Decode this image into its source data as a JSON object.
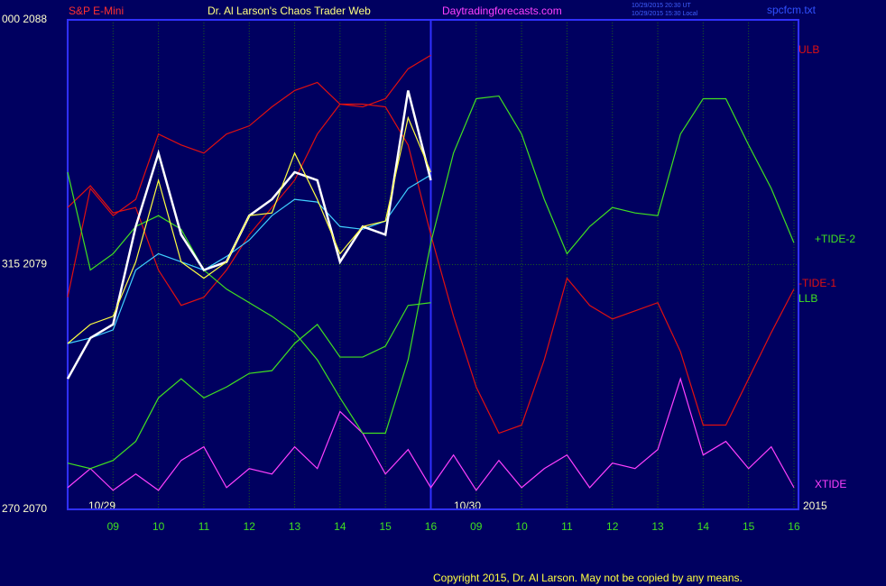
{
  "chart_data": {
    "type": "line",
    "instrument": "S&P E-Mini",
    "title": "Dr. Al Larson's Chaos Trader Web",
    "site": "Daytradingforecasts.com",
    "timestamps": [
      "10/29/2015 20:30 UT",
      "10/29/2015 15:30 Local"
    ],
    "file": "spcfcm.txt",
    "copyright": "Copyright 2015, Dr. Al Larson. May not be copied by any means.",
    "annotations": [
      "10/29",
      "10/30",
      "2015"
    ],
    "xlim": [
      0,
      16.1
    ],
    "ylim": [
      2070,
      2088
    ],
    "yticks": [
      {
        "value": 2088,
        "label": "000  2088"
      },
      {
        "value": 2079,
        "label": "315  2079"
      },
      {
        "value": 2070,
        "label": "270  2070"
      }
    ],
    "xticks": [
      {
        "value": 1,
        "label": "09"
      },
      {
        "value": 2,
        "label": "10"
      },
      {
        "value": 3,
        "label": "11"
      },
      {
        "value": 4,
        "label": "12"
      },
      {
        "value": 5,
        "label": "13"
      },
      {
        "value": 6,
        "label": "14"
      },
      {
        "value": 7,
        "label": "15"
      },
      {
        "value": 8,
        "label": "16"
      },
      {
        "value": 9,
        "label": "09"
      },
      {
        "value": 10,
        "label": "10"
      },
      {
        "value": 11,
        "label": "11"
      },
      {
        "value": 12,
        "label": "12"
      },
      {
        "value": 13,
        "label": "13"
      },
      {
        "value": 14,
        "label": "14"
      },
      {
        "value": 15,
        "label": "15"
      },
      {
        "value": 16,
        "label": "16"
      }
    ],
    "grid": true,
    "x": [
      0,
      0.5,
      1,
      1.5,
      2,
      2.5,
      3,
      3.5,
      4,
      4.5,
      5,
      5.5,
      6,
      6.5,
      7,
      7.5,
      8,
      8.5,
      9,
      9.5,
      10,
      10.5,
      11,
      11.5,
      12,
      12.5,
      13,
      13.5,
      14,
      14.5,
      15,
      15.5,
      16
    ],
    "series": [
      {
        "color": "#ffffff",
        "values": [
          2074.8,
          2076.3,
          2076.8,
          2080.4,
          2083.1,
          2080.1,
          2078.8,
          2079.1,
          2080.8,
          2081.4,
          2082.4,
          2082.1,
          2079.1,
          2080.4,
          2080.1,
          2085.4,
          2082.1,
          null,
          null,
          null,
          null,
          null,
          null,
          null,
          null,
          null,
          null,
          null,
          null,
          null,
          null,
          null,
          null
        ]
      },
      {
        "color": "#ffff40",
        "values": [
          2076.1,
          2076.8,
          2077.1,
          2079.1,
          2082.1,
          2079.1,
          2078.5,
          2079.1,
          2080.8,
          2080.9,
          2083.1,
          2081.4,
          2079.4,
          2080.4,
          2080.6,
          2084.4,
          2082.4,
          null,
          null,
          null,
          null,
          null,
          null,
          null,
          null,
          null,
          null,
          null,
          null,
          null,
          null,
          null,
          null
        ]
      },
      {
        "color": "#40d0ff",
        "values": [
          2076.1,
          2076.3,
          2076.6,
          2078.8,
          2079.4,
          2079.1,
          2078.8,
          2079.3,
          2079.9,
          2080.8,
          2081.4,
          2081.3,
          2080.4,
          2080.3,
          2080.6,
          2081.8,
          2082.3,
          null,
          null,
          null,
          null,
          null,
          null,
          null,
          null,
          null,
          null,
          null,
          null,
          null,
          null,
          null,
          null
        ]
      },
      {
        "name": "ULB",
        "color": "#e01010",
        "values": [
          2077.8,
          2081.8,
          2080.8,
          2081.4,
          2083.8,
          2083.4,
          2083.1,
          2083.8,
          2084.1,
          2084.8,
          2085.4,
          2085.7,
          2084.9,
          2084.8,
          2085.1,
          2086.2,
          2086.7,
          null,
          null,
          null,
          null,
          null,
          null,
          null,
          null,
          null,
          null,
          null,
          null,
          null,
          null,
          null,
          null
        ]
      },
      {
        "name": "+TIDE-2",
        "color": "#40e020",
        "values": [
          2082.4,
          2078.8,
          2079.4,
          2080.4,
          2080.8,
          2080.3,
          2078.8,
          2078.1,
          2077.6,
          2077.1,
          2076.5,
          2075.5,
          2074.1,
          2072.8,
          2072.8,
          2075.5,
          2079.8,
          2083.1,
          2085.1,
          2085.2,
          2083.8,
          2081.4,
          2079.4,
          2080.4,
          2081.1,
          2080.9,
          2080.8,
          2083.8,
          2085.1,
          2085.1,
          2083.4,
          2081.8,
          2079.8
        ]
      },
      {
        "name": "-TIDE-1",
        "color": "#e01010",
        "values": [
          2081.1,
          2081.9,
          2080.9,
          2081.1,
          2078.8,
          2077.5,
          2077.8,
          2078.8,
          2080.1,
          2081.1,
          2082.1,
          2083.8,
          2084.9,
          2084.9,
          2084.8,
          2083.4,
          2080.1,
          2077.1,
          2074.5,
          2072.8,
          2073.1,
          2075.5,
          2078.5,
          2077.5,
          2077.0,
          2077.3,
          2077.6,
          2075.8,
          2073.1,
          2073.1,
          2074.8,
          2076.5,
          2078.1
        ]
      },
      {
        "name": "LLB",
        "color": "#40e020",
        "values": [
          2071.7,
          2071.5,
          2071.8,
          2072.5,
          2074.1,
          2074.8,
          2074.1,
          2074.5,
          2075.0,
          2075.1,
          2076.1,
          2076.8,
          2075.6,
          2075.6,
          2076.0,
          2077.5,
          2077.6,
          null,
          null,
          null,
          null,
          null,
          null,
          null,
          null,
          null,
          null,
          null,
          null,
          null,
          null,
          null,
          null
        ]
      },
      {
        "name": "XTIDE",
        "color": "#ff40ff",
        "values": [
          2070.8,
          2071.5,
          2070.7,
          2071.3,
          2070.7,
          2071.8,
          2072.3,
          2070.8,
          2071.5,
          2071.3,
          2072.3,
          2071.5,
          2073.6,
          2072.8,
          2071.3,
          2072.2,
          2070.8,
          2072.0,
          2070.7,
          2071.8,
          2070.8,
          2071.5,
          2072.0,
          2070.8,
          2071.7,
          2071.5,
          2072.2,
          2074.8,
          2072.0,
          2072.5,
          2071.5,
          2072.3,
          2070.8
        ]
      }
    ]
  }
}
